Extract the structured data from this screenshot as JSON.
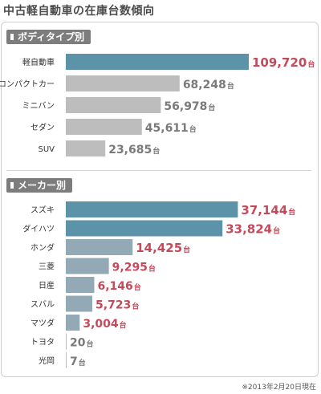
{
  "title": "中古軽自動車の在庫台数傾向",
  "footnote": "※2013年2月20日現在",
  "colors": {
    "highlight_bar": "#5d93a8",
    "normal_bar": "#bdbdbd",
    "maker_bar": "#94a9b6",
    "highlight_value": "#c44a5b",
    "normal_value": "#7a7a7a",
    "tab_bg": "#7d7d7d"
  },
  "chart_data": [
    {
      "type": "bar",
      "title": "ボディタイプ別",
      "orientation": "horizontal",
      "unit": "台",
      "categories": [
        "軽自動車",
        "コンパクトカー",
        "ミニバン",
        "セダン",
        "SUV"
      ],
      "values": [
        109720,
        68248,
        56978,
        45611,
        23685
      ],
      "value_labels": [
        "109,720",
        "68,248",
        "56,978",
        "45,611",
        "23,685"
      ],
      "highlight": [
        true,
        false,
        false,
        false,
        false
      ],
      "xlim": [
        0,
        109720
      ]
    },
    {
      "type": "bar",
      "title": "メーカー別",
      "orientation": "horizontal",
      "unit": "台",
      "categories": [
        "スズキ",
        "ダイハツ",
        "ホンダ",
        "三菱",
        "日産",
        "スバル",
        "マツダ",
        "トヨタ",
        "光岡"
      ],
      "values": [
        37144,
        33824,
        14425,
        9295,
        6146,
        5723,
        3004,
        20,
        7
      ],
      "value_labels": [
        "37,144",
        "33,824",
        "14,425",
        "9,295",
        "6,146",
        "5,723",
        "3,004",
        "20",
        "7"
      ],
      "highlight": [
        true,
        true,
        true,
        true,
        true,
        true,
        true,
        false,
        false
      ],
      "xlim": [
        0,
        39500
      ]
    }
  ]
}
